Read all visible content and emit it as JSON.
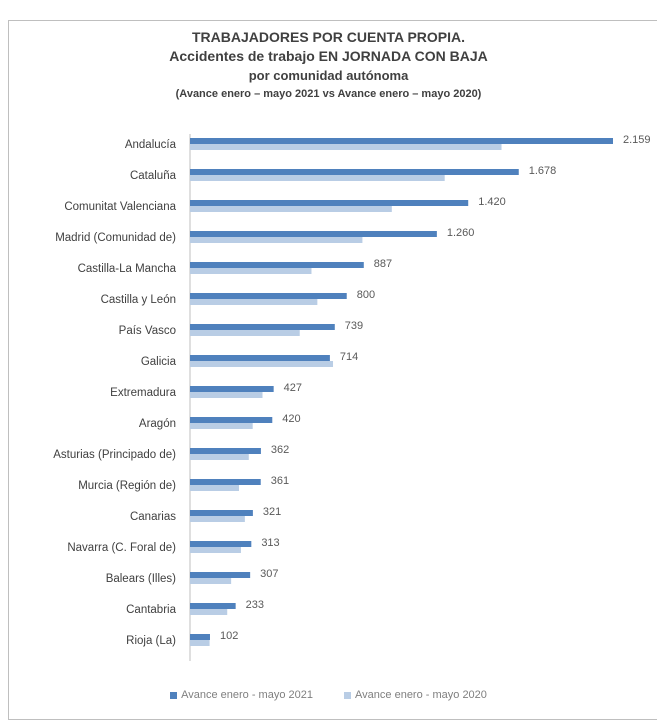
{
  "chart_data": {
    "type": "bar",
    "orientation": "horizontal",
    "title": "TRABAJADORES POR CUENTA PROPIA.",
    "subtitle_lines": [
      "Accidentes de trabajo EN JORNADA CON BAJA",
      "por comunidad autónoma",
      "(Avance enero – mayo 2021 vs Avance enero – mayo 2020)"
    ],
    "categories": [
      "Andalucía",
      "Cataluña",
      "Comunitat Valenciana",
      "Madrid (Comunidad de)",
      "Castilla-La Mancha",
      "Castilla y León",
      "País Vasco",
      "Galicia",
      "Extremadura",
      "Aragón",
      "Asturias (Principado de)",
      "Murcia (Región de)",
      "Canarias",
      "Navarra (C. Foral de)",
      "Balears (Illes)",
      "Cantabria",
      "Rioja (La)"
    ],
    "series": [
      {
        "name": "Avance enero - mayo 2021",
        "color": "#4f81bd",
        "values": [
          2159,
          1678,
          1420,
          1260,
          887,
          800,
          739,
          714,
          427,
          420,
          362,
          361,
          321,
          313,
          307,
          233,
          102
        ],
        "labels": [
          "2.159",
          "1.678",
          "1.420",
          "1.260",
          "887",
          "800",
          "739",
          "714",
          "427",
          "420",
          "362",
          "361",
          "321",
          "313",
          "307",
          "233",
          "102"
        ]
      },
      {
        "name": "Avance enero - mayo 2020",
        "color": "#b9cde5",
        "values": [
          1590,
          1300,
          1030,
          880,
          620,
          650,
          560,
          730,
          370,
          320,
          300,
          250,
          280,
          260,
          210,
          190,
          100
        ]
      }
    ],
    "xlim": [
      0,
      2200
    ],
    "grid": false,
    "legend_position": "bottom"
  }
}
